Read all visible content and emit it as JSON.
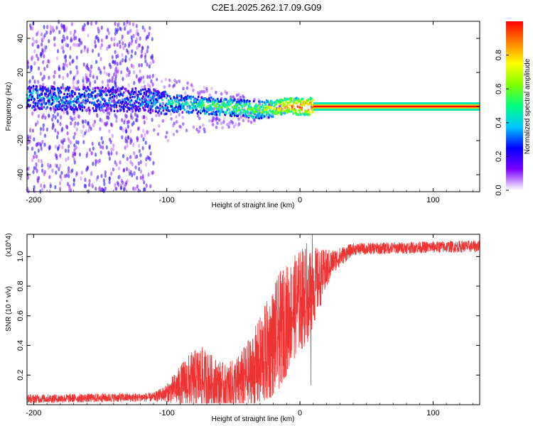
{
  "title": "C2E1.2025.262.17.09.G09",
  "chart_data": [
    {
      "type": "heatmap",
      "title": "C2E1.2025.262.17.09.G09",
      "xlabel": "Height of straight line (km)",
      "ylabel": "Frequency (Hz)",
      "xlim": [
        -205,
        135
      ],
      "ylim": [
        -50,
        50
      ],
      "xticks": [
        -200,
        -100,
        0,
        100
      ],
      "xtick_labels": [
        "-200",
        "-100",
        "0",
        "100"
      ],
      "yticks": [
        -40,
        -20,
        0,
        20,
        40
      ],
      "ytick_labels": [
        "-40",
        "-20",
        "0",
        "20",
        "40"
      ],
      "colorbar": {
        "label": "Normalized spectral amplitude",
        "range": [
          0,
          1
        ],
        "ticks": [
          0.0,
          0.2,
          0.4,
          0.6,
          0.8
        ],
        "tick_labels": [
          "0.0",
          "0.2",
          "0.4",
          "0.6",
          "0.8"
        ],
        "colormap": [
          "#ffffff",
          "#7a00ff",
          "#0000ff",
          "#00c8ff",
          "#00ff80",
          "#80ff00",
          "#ffff00",
          "#ff8000",
          "#ff0000"
        ]
      },
      "center_line": {
        "description": "dominant spectral line near 0 Hz",
        "segments": [
          {
            "x": -205,
            "freq": 5,
            "amp": 0.35
          },
          {
            "x": -120,
            "freq": 4,
            "amp": 0.3
          },
          {
            "x": -100,
            "freq": 2,
            "amp": 0.4
          },
          {
            "x": -60,
            "freq": 0,
            "amp": 0.55
          },
          {
            "x": -30,
            "freq": -2,
            "amp": 0.6
          },
          {
            "x": -10,
            "freq": 0,
            "amp": 0.85
          },
          {
            "x": 10,
            "freq": 0,
            "amp": 1.0
          },
          {
            "x": 135,
            "freq": 0,
            "amp": 1.0
          }
        ]
      }
    },
    {
      "type": "line",
      "xlabel": "Height of straight line (km)",
      "ylabel": "SNR (10 * v/v)",
      "y_multiplier": "(x10^4)",
      "xlim": [
        -205,
        135
      ],
      "ylim": [
        0,
        1.15
      ],
      "xticks": [
        -200,
        -100,
        0,
        100
      ],
      "xtick_labels": [
        "-200",
        "-100",
        "0",
        "100"
      ],
      "yticks": [
        0.2,
        0.4,
        0.6,
        0.8,
        1.0
      ],
      "ytick_labels": [
        "0.2",
        "0.4",
        "0.6",
        "0.8",
        "1.0"
      ],
      "series": [
        {
          "name": "SNR",
          "color": "#ee3333",
          "envelope": [
            {
              "x": -205,
              "y": 0.04,
              "noise": 0.03
            },
            {
              "x": -110,
              "y": 0.05,
              "noise": 0.03
            },
            {
              "x": -100,
              "y": 0.08,
              "noise": 0.06
            },
            {
              "x": -85,
              "y": 0.15,
              "noise": 0.18
            },
            {
              "x": -75,
              "y": 0.18,
              "noise": 0.22
            },
            {
              "x": -65,
              "y": 0.15,
              "noise": 0.18
            },
            {
              "x": -55,
              "y": 0.12,
              "noise": 0.15
            },
            {
              "x": -45,
              "y": 0.15,
              "noise": 0.2
            },
            {
              "x": -35,
              "y": 0.22,
              "noise": 0.28
            },
            {
              "x": -25,
              "y": 0.35,
              "noise": 0.35
            },
            {
              "x": -15,
              "y": 0.5,
              "noise": 0.4
            },
            {
              "x": -5,
              "y": 0.65,
              "noise": 0.35
            },
            {
              "x": 5,
              "y": 0.75,
              "noise": 0.35
            },
            {
              "x": 15,
              "y": 0.85,
              "noise": 0.2
            },
            {
              "x": 25,
              "y": 0.97,
              "noise": 0.08
            },
            {
              "x": 40,
              "y": 1.05,
              "noise": 0.04
            },
            {
              "x": 80,
              "y": 1.06,
              "noise": 0.04
            },
            {
              "x": 135,
              "y": 1.07,
              "noise": 0.04
            }
          ]
        }
      ]
    }
  ]
}
